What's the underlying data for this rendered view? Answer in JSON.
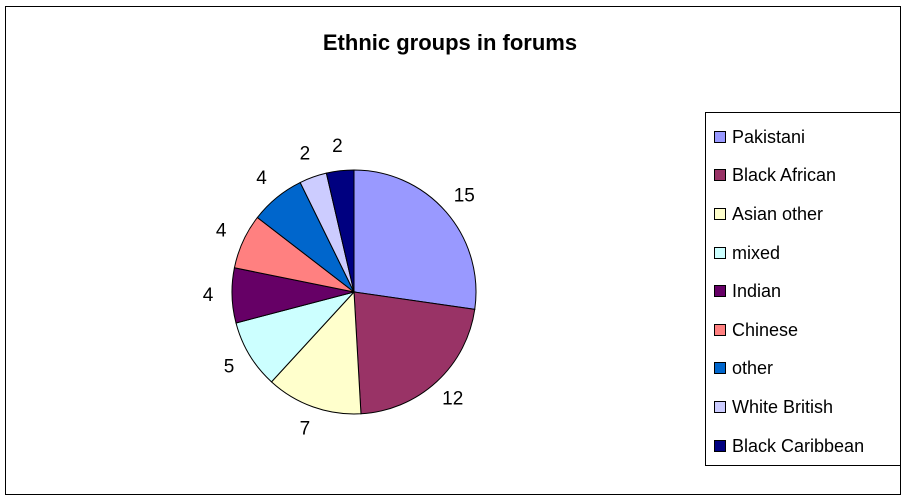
{
  "chart_data": {
    "type": "pie",
    "title": "Ethnic groups in forums",
    "categories": [
      "Pakistani",
      "Black African",
      "Asian other",
      "mixed",
      "Indian",
      "Chinese",
      "other",
      "White British",
      "Black Caribbean"
    ],
    "values": [
      15,
      12,
      7,
      5,
      4,
      4,
      4,
      2,
      2
    ],
    "data_labels": [
      "15",
      "12",
      "7",
      "5",
      "4",
      "4",
      "4",
      "2",
      "2"
    ],
    "colors": [
      "#9999ff",
      "#993366",
      "#ffffcc",
      "#ccffff",
      "#660066",
      "#ff8080",
      "#0066cc",
      "#ccccff",
      "#000080"
    ],
    "legend_position": "right"
  }
}
